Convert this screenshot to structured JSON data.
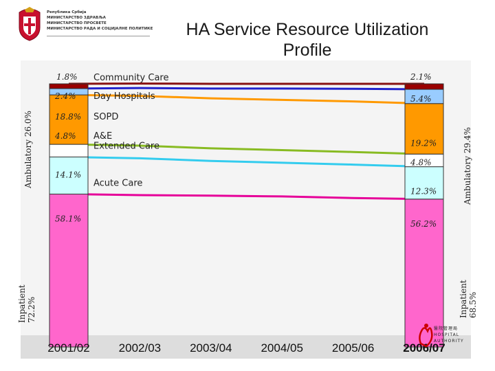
{
  "page": {
    "title": "HA Service Resource Utilization Profile",
    "ministry_lines": [
      "Република Србија",
      "МИНИСТАРСТВО ЗДРАВЉА",
      "МИНИСТАРСТВО ПРОСВЕТЕ",
      "МИНИСТАРСТВО РАДА И СОЦИЈАЛНЕ ПОЛИТИКЕ"
    ],
    "ha_logo_text": [
      "醫院管理局",
      "HOSPITAL",
      "AUTHORITY"
    ]
  },
  "chart_data": {
    "type": "area",
    "title": "HA Service Resource Utilization Profile",
    "categories": [
      "2001/02",
      "2002/03",
      "2003/04",
      "2004/05",
      "2005/06",
      "2006/07"
    ],
    "unit": "% of total resource utilization (stacked, bottom to top)",
    "series": [
      {
        "name": "Acute Care",
        "color": "#ff66cc",
        "line_color": "#e60099",
        "values": [
          58.1,
          57.7,
          57.5,
          57.2,
          56.6,
          56.2
        ],
        "label_first": "58.1%",
        "label_last": "56.2%"
      },
      {
        "name": "Extended Care",
        "color": "#ccffff",
        "line_color": "#33ccee",
        "values": [
          14.1,
          14.0,
          13.2,
          12.8,
          12.7,
          12.3
        ],
        "label_first": "14.1%",
        "label_last": "12.3%"
      },
      {
        "name": "A&E",
        "color": "#ffffff",
        "line_color": "#88bb22",
        "values": [
          4.8,
          4.8,
          4.8,
          4.8,
          4.8,
          4.8
        ],
        "label_first": "4.8%",
        "label_last": "4.8%"
      },
      {
        "name": "SOPD",
        "color": "#ff9900",
        "line_color": "#ff9900",
        "values": [
          18.8,
          18.9,
          19.0,
          19.1,
          19.2,
          19.2
        ],
        "label_first": "18.8%",
        "label_last": "19.2%"
      },
      {
        "name": "Day Hospitals",
        "color": "#99ccff",
        "line_color": "#2222cc",
        "values": [
          2.4,
          3.0,
          3.7,
          4.3,
          4.8,
          5.4
        ],
        "label_first": "2.4%",
        "label_last": "5.4%"
      },
      {
        "name": "Community Care",
        "color": "#990000",
        "line_color": "#881111",
        "values": [
          1.8,
          1.7,
          1.8,
          1.8,
          1.9,
          2.1
        ],
        "label_first": "1.8%",
        "label_last": "2.1%"
      }
    ],
    "groups": {
      "left_ambulatory": "Ambulatory 26.0%",
      "left_inpatient": "Inpatient 72.2%",
      "right_ambulatory": "Ambulatory 29.4%",
      "right_inpatient": "Inpatient 68.5%"
    },
    "highlighted_category": "2006/07"
  }
}
